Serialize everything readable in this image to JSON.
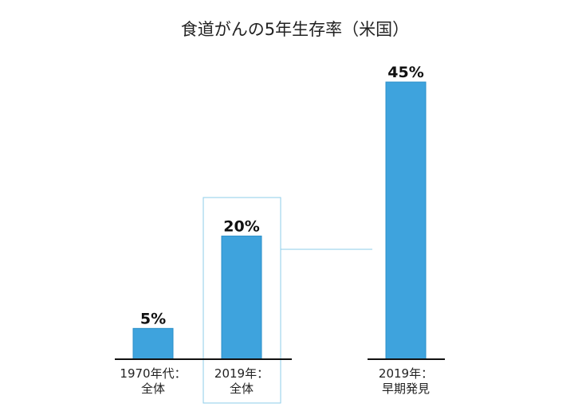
{
  "chart_data": {
    "type": "bar",
    "title": "食道がんの5年生存率（米国）",
    "categories": [
      [
        "1970年代：",
        "全体"
      ],
      [
        "2019年：",
        "全体"
      ],
      [
        "2019年：",
        "早期発見"
      ]
    ],
    "values": [
      5,
      20,
      45
    ],
    "value_labels": [
      "5%",
      "20%",
      "45%"
    ],
    "unit": "%",
    "ylim": [
      0,
      50
    ],
    "grid": false,
    "legend": "none",
    "highlighted_category_index": 1,
    "colors": {
      "bar_fill": "#3ea3dd",
      "bar_stroke": "#2b8fc9",
      "highlight_box": "#8dcdea",
      "axis": "#111111"
    }
  }
}
